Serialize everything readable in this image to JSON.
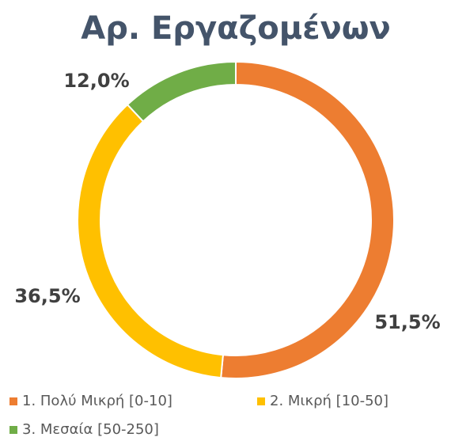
{
  "chart_data": {
    "type": "donut",
    "title": "Αρ. Εργαζομένων",
    "categories": [
      "1. Πολύ Μικρή [0-10]",
      "2. Μικρή [10-50]",
      "3. Μεσαία [50-250]"
    ],
    "values": [
      51.5,
      36.5,
      12.0
    ],
    "value_labels": [
      "51,5%",
      "36,5%",
      "12,0%"
    ],
    "colors": [
      "#ed7d31",
      "#ffc000",
      "#70ad47"
    ]
  }
}
